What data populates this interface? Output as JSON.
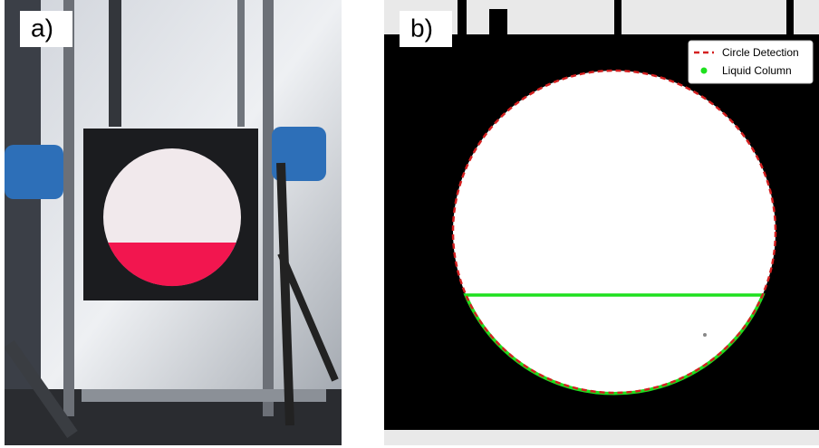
{
  "panels": [
    {
      "label": "a)"
    },
    {
      "label": "b)",
      "legend": [
        "Circle Detection",
        "Liquid Column"
      ]
    }
  ]
}
